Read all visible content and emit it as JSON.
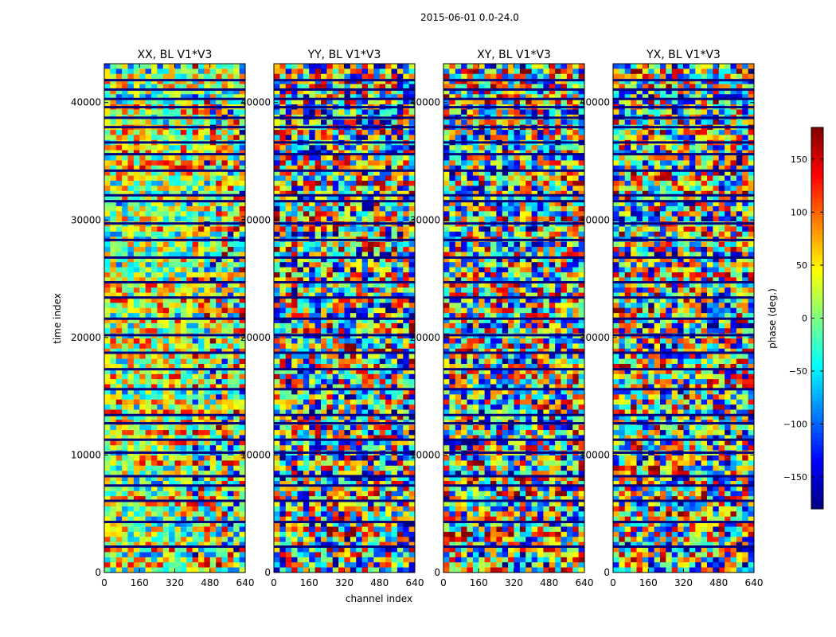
{
  "figure": {
    "suptitle": "2015-06-01 0.0-24.0"
  },
  "chart_data": {
    "type": "heatmap",
    "xlabel": "channel index",
    "ylabel": "time index",
    "xlim": [
      0,
      640
    ],
    "ylim": [
      0,
      43300
    ],
    "x_ticks": [
      0,
      160,
      320,
      480,
      640
    ],
    "y_ticks": [
      0,
      10000,
      20000,
      30000,
      40000
    ],
    "colormap": "jet",
    "panels": [
      {
        "title": "XX, BL V1*V3",
        "bias": 0.56,
        "spread": 0.55
      },
      {
        "title": "YY, BL V1*V3",
        "bias": 0.5,
        "spread": 0.95
      },
      {
        "title": "XY, BL V1*V3",
        "bias": 0.5,
        "spread": 0.9
      },
      {
        "title": "YX, BL V1*V3",
        "bias": 0.5,
        "spread": 0.9
      }
    ],
    "colorbar": {
      "label": "phase (deg.)",
      "range": [
        -180,
        180
      ],
      "ticks": [
        -150,
        -100,
        -50,
        0,
        50,
        100,
        150
      ]
    },
    "dropout_rows": [
      2200,
      4300,
      6100,
      7400,
      8200,
      10200,
      11300,
      12700,
      13400,
      15600,
      17300,
      18700,
      20200,
      21600,
      23400,
      24700,
      26800,
      28300,
      29700,
      31600,
      32100,
      34200,
      35600,
      36600,
      37900,
      38700,
      39600,
      40300,
      41100,
      41900
    ]
  }
}
